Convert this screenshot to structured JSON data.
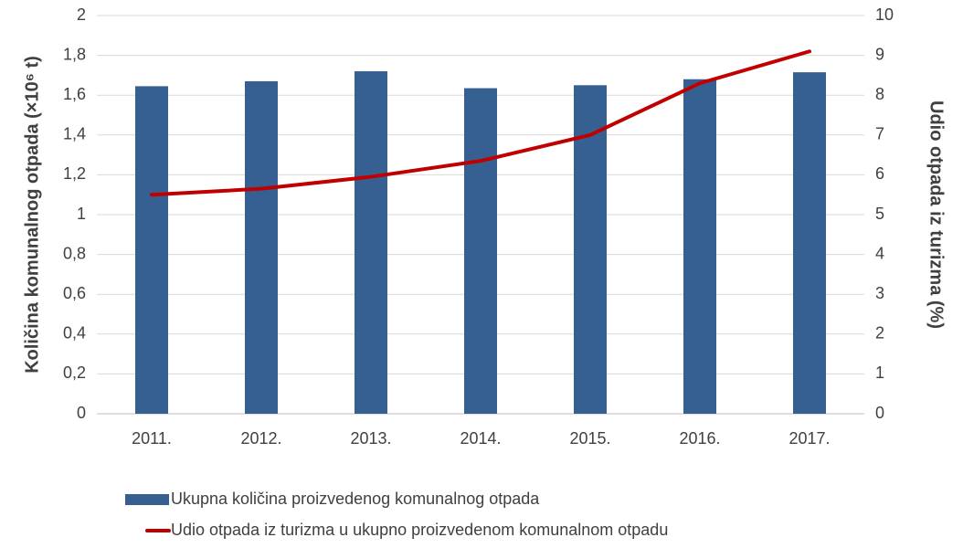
{
  "chart_data": {
    "type": "combo",
    "categories": [
      "2011.",
      "2012.",
      "2013.",
      "2014.",
      "2015.",
      "2016.",
      "2017."
    ],
    "series": [
      {
        "name": "Ukupna količina proizvedenog komunalnog otpada",
        "type": "bar",
        "color": "#376092",
        "values": [
          1.645,
          1.67,
          1.72,
          1.635,
          1.65,
          1.68,
          1.715
        ]
      },
      {
        "name": "Udio otpada iz turizma u ukupno proizvedenom komunalnom otpadu",
        "type": "line",
        "axis": "y2",
        "color": "#c00000",
        "values": [
          5.5,
          5.65,
          5.95,
          6.35,
          7.0,
          8.3,
          9.1
        ]
      }
    ],
    "ylabel": "Količina komunalnog otpada (×10⁶ t)",
    "y2label": "Udio otpada iz turizma (%)",
    "ylim": [
      0,
      2
    ],
    "yticks": [
      0,
      {
        "value": 0.2,
        "label": "0,2"
      },
      {
        "value": 0.4,
        "label": "0,4"
      },
      {
        "value": 0.6,
        "label": "0,6"
      },
      {
        "value": 0.8,
        "label": "0,8"
      },
      1,
      {
        "value": 1.2,
        "label": "1,2"
      },
      {
        "value": 1.4,
        "label": "1,4"
      },
      {
        "value": 1.6,
        "label": "1,6"
      },
      {
        "value": 1.8,
        "label": "1,8"
      },
      2
    ],
    "y2lim": [
      0,
      10
    ],
    "y2ticks": [
      0,
      1,
      2,
      3,
      4,
      5,
      6,
      7,
      8,
      9,
      10
    ],
    "grid": true
  }
}
